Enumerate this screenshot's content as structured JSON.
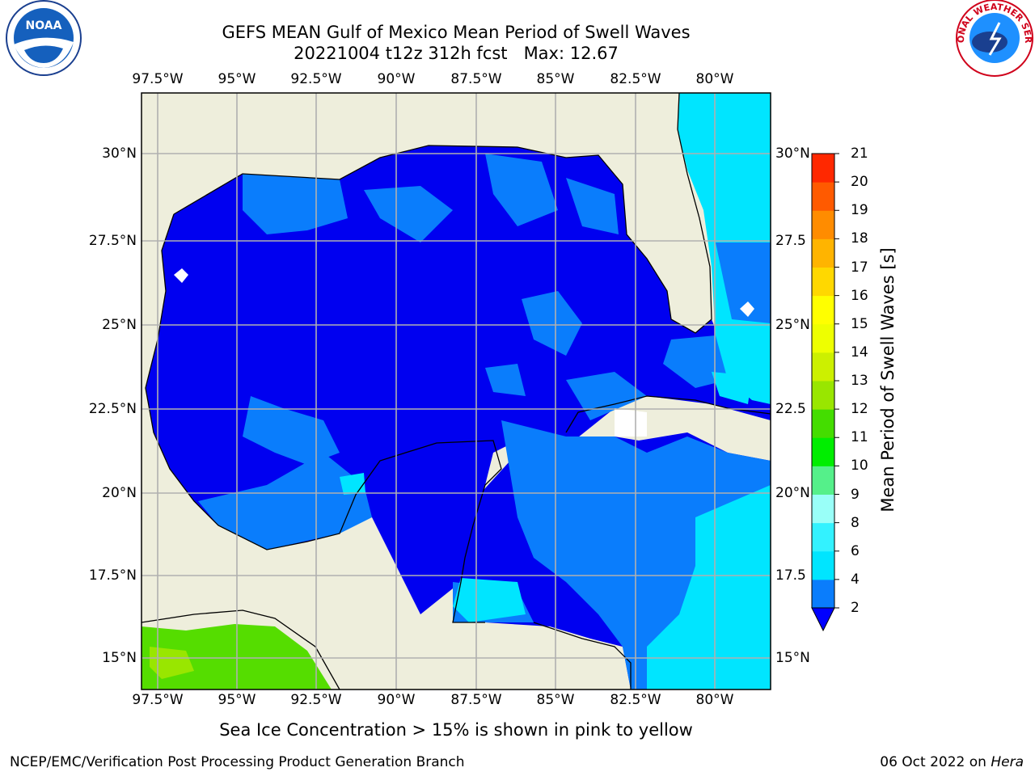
{
  "title_line1": "GEFS MEAN Gulf of Mexico Mean Period of Swell Waves",
  "title_line2": "20221004 t12z 312h fcst   Max: 12.67",
  "lon_labels": [
    "97.5°W",
    "95°W",
    "92.5°W",
    "90°W",
    "87.5°W",
    "85°W",
    "82.5°W",
    "80°W"
  ],
  "lat_labels": [
    "30°N",
    "27.5°N",
    "25°N",
    "22.5°N",
    "20°N",
    "17.5°N",
    "15°N"
  ],
  "lat_labels_right": [
    "30°N",
    "27.5",
    "25°N",
    "22.5",
    "20°N",
    "17.5",
    "15°N"
  ],
  "colorbar": {
    "title": "Mean Period of Swell Waves [s]",
    "ticks": [
      "2",
      "4",
      "6",
      "8",
      "9",
      "10",
      "11",
      "12",
      "13",
      "14",
      "15",
      "16",
      "17",
      "18",
      "19",
      "20",
      "21"
    ],
    "colors": [
      "#0a7dfc",
      "#00e5ff",
      "#33f2ff",
      "#99fff8",
      "#55f08a",
      "#00ee00",
      "#44dd00",
      "#99e600",
      "#ccf000",
      "#eeff00",
      "#ffff00",
      "#ffd800",
      "#ffb400",
      "#ff8c00",
      "#ff5a00",
      "#ff2800",
      "#ff0000"
    ],
    "under_color": "#0000ff"
  },
  "colors": {
    "land": "#eeeedc",
    "deep_blue": "#0000f0",
    "mid_blue": "#0a7dfc",
    "cyan": "#00e5ff",
    "green": "#55dd00",
    "grid": "#b0b0b0"
  },
  "logos": {
    "left": {
      "icon": "noaa-logo",
      "text": "NOAA"
    },
    "right": {
      "icon": "nws-logo",
      "text": "NATIONAL WEATHER SERVICE"
    }
  },
  "note": "Sea Ice Concentration > 15% is shown in pink to yellow",
  "credit": "NCEP/EMC/Verification Post Processing Product Generation Branch",
  "date_prefix": "06 Oct 2022 on",
  "date_host": "Hera"
}
